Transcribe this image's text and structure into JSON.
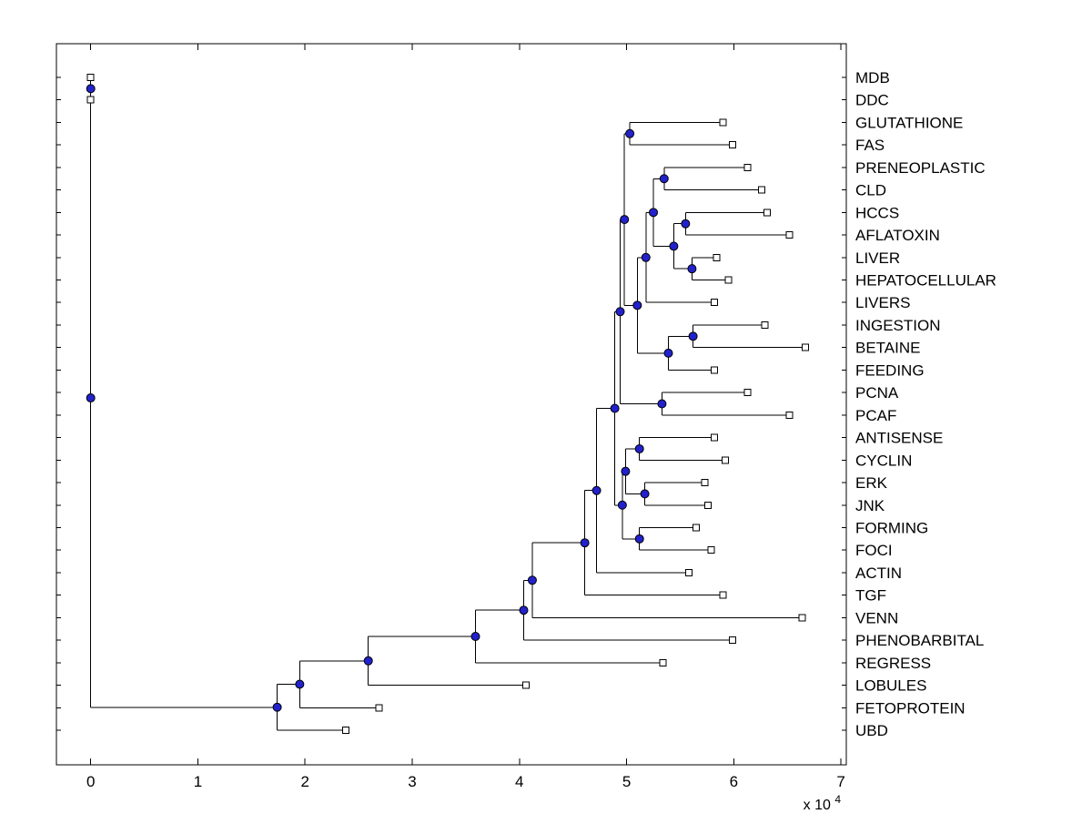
{
  "figure": {
    "background": "#ffffff"
  },
  "chart_data": {
    "type": "dendrogram",
    "orientation": "horizontal-right-labels",
    "x_axis": {
      "ticks": [
        0,
        1,
        2,
        3,
        4,
        5,
        6,
        7
      ],
      "multiplier_prefix": "x 10",
      "multiplier_exponent": "4",
      "xlim": [
        -0.32,
        7.05
      ]
    },
    "leaves": [
      {
        "label": "MDB",
        "x": 0
      },
      {
        "label": "DDC",
        "x": 0
      },
      {
        "label": "GLUTATHIONE",
        "x": 5.9
      },
      {
        "label": "FAS",
        "x": 5.99
      },
      {
        "label": "PRENEOPLASTIC",
        "x": 6.13
      },
      {
        "label": "CLD",
        "x": 6.26
      },
      {
        "label": "HCCS",
        "x": 6.31
      },
      {
        "label": "AFLATOXIN",
        "x": 6.52
      },
      {
        "label": "LIVER",
        "x": 5.84
      },
      {
        "label": "HEPATOCELLULAR",
        "x": 5.95
      },
      {
        "label": "LIVERS",
        "x": 5.82
      },
      {
        "label": "INGESTION",
        "x": 6.29
      },
      {
        "label": "BETAINE",
        "x": 6.67
      },
      {
        "label": "FEEDING",
        "x": 5.82
      },
      {
        "label": "PCNA",
        "x": 6.13
      },
      {
        "label": "PCAF",
        "x": 6.52
      },
      {
        "label": "ANTISENSE",
        "x": 5.82
      },
      {
        "label": "CYCLIN",
        "x": 5.92
      },
      {
        "label": "ERK",
        "x": 5.73
      },
      {
        "label": "JNK",
        "x": 5.76
      },
      {
        "label": "FORMING",
        "x": 5.65
      },
      {
        "label": "FOCI",
        "x": 5.79
      },
      {
        "label": "ACTIN",
        "x": 5.58
      },
      {
        "label": "TGF",
        "x": 5.9
      },
      {
        "label": "VENN",
        "x": 6.64
      },
      {
        "label": "PHENOBARBITAL",
        "x": 5.99
      },
      {
        "label": "REGRESS",
        "x": 5.34
      },
      {
        "label": "LOBULES",
        "x": 4.06
      },
      {
        "label": "FETOPROTEIN",
        "x": 2.69
      },
      {
        "label": "UBD",
        "x": 2.38
      }
    ],
    "internal_nodes": [
      {
        "id": "n-mdb-ddc",
        "x": 0,
        "children": [
          "MDB",
          "DDC"
        ]
      },
      {
        "id": "n-glut-fas",
        "x": 5.03,
        "children": [
          "GLUTATHIONE",
          "FAS"
        ]
      },
      {
        "id": "n-pren-cld",
        "x": 5.35,
        "children": [
          "PRENEOPLASTIC",
          "CLD"
        ]
      },
      {
        "id": "n-hccs-afla",
        "x": 5.55,
        "children": [
          "HCCS",
          "AFLATOXIN"
        ]
      },
      {
        "id": "n-liver-hep",
        "x": 5.61,
        "children": [
          "LIVER",
          "HEPATOCELLULAR"
        ]
      },
      {
        "id": "n-hccs-liver",
        "x": 5.44,
        "children": [
          "n-hccs-afla",
          "n-liver-hep"
        ]
      },
      {
        "id": "n-pren-group",
        "x": 5.25,
        "children": [
          "n-pren-cld",
          "n-hccs-liver"
        ]
      },
      {
        "id": "n-livers-group",
        "x": 5.18,
        "children": [
          "n-pren-group",
          "LIVERS"
        ]
      },
      {
        "id": "n-ing-bet",
        "x": 5.62,
        "children": [
          "INGESTION",
          "BETAINE"
        ]
      },
      {
        "id": "n-feeding-group",
        "x": 5.39,
        "children": [
          "n-ing-bet",
          "FEEDING"
        ]
      },
      {
        "id": "n-mid-group",
        "x": 5.1,
        "children": [
          "n-livers-group",
          "n-feeding-group"
        ]
      },
      {
        "id": "n-upper-group",
        "x": 4.98,
        "children": [
          "n-glut-fas",
          "n-mid-group"
        ]
      },
      {
        "id": "n-pcna-pcaf",
        "x": 5.33,
        "children": [
          "PCNA",
          "PCAF"
        ]
      },
      {
        "id": "n-upper2",
        "x": 4.94,
        "children": [
          "n-upper-group",
          "n-pcna-pcaf"
        ]
      },
      {
        "id": "n-anti-cyc",
        "x": 5.12,
        "children": [
          "ANTISENSE",
          "CYCLIN"
        ]
      },
      {
        "id": "n-erk-jnk",
        "x": 5.17,
        "children": [
          "ERK",
          "JNK"
        ]
      },
      {
        "id": "n-anti-erk",
        "x": 4.99,
        "children": [
          "n-anti-cyc",
          "n-erk-jnk"
        ]
      },
      {
        "id": "n-form-foci",
        "x": 5.12,
        "children": [
          "FORMING",
          "FOCI"
        ]
      },
      {
        "id": "n-lower-mid",
        "x": 4.96,
        "children": [
          "n-anti-erk",
          "n-form-foci"
        ]
      },
      {
        "id": "n-core",
        "x": 4.89,
        "children": [
          "n-upper2",
          "n-lower-mid"
        ]
      },
      {
        "id": "n-actin",
        "x": 4.72,
        "children": [
          "n-core",
          "ACTIN"
        ]
      },
      {
        "id": "n-tgf",
        "x": 4.61,
        "children": [
          "n-actin",
          "TGF"
        ]
      },
      {
        "id": "n-venn",
        "x": 4.12,
        "children": [
          "n-tgf",
          "VENN"
        ]
      },
      {
        "id": "n-phen",
        "x": 4.04,
        "children": [
          "n-venn",
          "PHENOBARBITAL"
        ]
      },
      {
        "id": "n-regress",
        "x": 3.59,
        "children": [
          "n-phen",
          "REGRESS"
        ]
      },
      {
        "id": "n-lobules",
        "x": 2.59,
        "children": [
          "n-regress",
          "LOBULES"
        ]
      },
      {
        "id": "n-fetoprotein",
        "x": 1.95,
        "children": [
          "n-lobules",
          "FETOPROTEIN"
        ]
      },
      {
        "id": "n-ubd",
        "x": 1.74,
        "children": [
          "n-fetoprotein",
          "UBD"
        ]
      },
      {
        "id": "root",
        "x": 0,
        "children": [
          "n-mdb-ddc",
          "n-ubd"
        ]
      }
    ],
    "style": {
      "branch_color": "#000000",
      "internal_node_fill": "#2222cc",
      "internal_node_edge": "#000000",
      "leaf_marker_fill": "#ffffff",
      "leaf_marker_edge": "#000000",
      "axis_color": "#000000"
    }
  }
}
